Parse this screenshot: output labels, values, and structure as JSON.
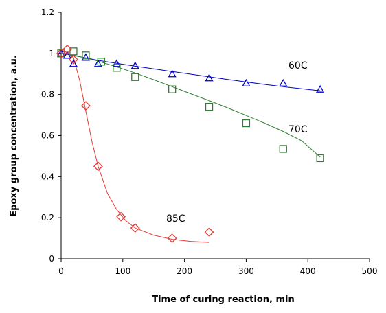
{
  "chart_data": {
    "type": "scatter",
    "title": "",
    "xlabel": "Time of curing reaction, min",
    "ylabel": "Epoxy group concentration, a.u.",
    "xlim": [
      0,
      500
    ],
    "ylim": [
      0,
      1.2
    ],
    "xticks": [
      "0",
      "100",
      "200",
      "300",
      "400",
      "500"
    ],
    "yticks": [
      "0",
      "0.2",
      "0.4",
      "0.6",
      "0.8",
      "1",
      "1.2"
    ],
    "grid": false,
    "legend": "none",
    "series": [
      {
        "name": "60C",
        "marker": "triangle",
        "color": "#0000CC",
        "x": [
          0,
          10,
          20,
          40,
          60,
          90,
          120,
          180,
          240,
          300,
          360,
          420
        ],
        "y": [
          1.0,
          0.99,
          0.95,
          0.98,
          0.95,
          0.95,
          0.94,
          0.9,
          0.88,
          0.855,
          0.855,
          0.825
        ],
        "fit": {
          "x": [
            0,
            20,
            40,
            60,
            90,
            120,
            150,
            180,
            210,
            240,
            270,
            300,
            330,
            360,
            390,
            420
          ],
          "y": [
            1.0,
            0.99,
            0.978,
            0.966,
            0.952,
            0.938,
            0.925,
            0.912,
            0.899,
            0.886,
            0.873,
            0.861,
            0.849,
            0.838,
            0.828,
            0.818
          ]
        }
      },
      {
        "name": "70C",
        "marker": "square",
        "color": "#2E7D32",
        "x": [
          0,
          20,
          40,
          65,
          90,
          120,
          180,
          240,
          300,
          360,
          420
        ],
        "y": [
          1.0,
          1.01,
          0.99,
          0.96,
          0.93,
          0.885,
          0.825,
          0.74,
          0.66,
          0.535,
          0.49
        ],
        "fit": {
          "x": [
            0,
            20,
            40,
            60,
            90,
            120,
            150,
            180,
            210,
            240,
            270,
            300,
            330,
            360,
            390,
            420
          ],
          "y": [
            1.0,
            0.99,
            0.978,
            0.962,
            0.935,
            0.905,
            0.872,
            0.838,
            0.804,
            0.77,
            0.735,
            0.698,
            0.66,
            0.62,
            0.575,
            0.495
          ]
        }
      },
      {
        "name": "85C",
        "marker": "diamond",
        "color": "#E53935",
        "x": [
          0,
          10,
          20,
          40,
          60,
          97,
          120,
          180,
          240
        ],
        "y": [
          1.0,
          1.02,
          0.97,
          0.745,
          0.45,
          0.205,
          0.15,
          0.1,
          0.13
        ],
        "fit": {
          "x": [
            0,
            10,
            20,
            30,
            40,
            50,
            60,
            75,
            90,
            105,
            120,
            150,
            180,
            210,
            240
          ],
          "y": [
            1.0,
            1.0,
            0.98,
            0.87,
            0.72,
            0.57,
            0.45,
            0.32,
            0.24,
            0.185,
            0.15,
            0.115,
            0.095,
            0.085,
            0.08
          ]
        }
      }
    ]
  }
}
